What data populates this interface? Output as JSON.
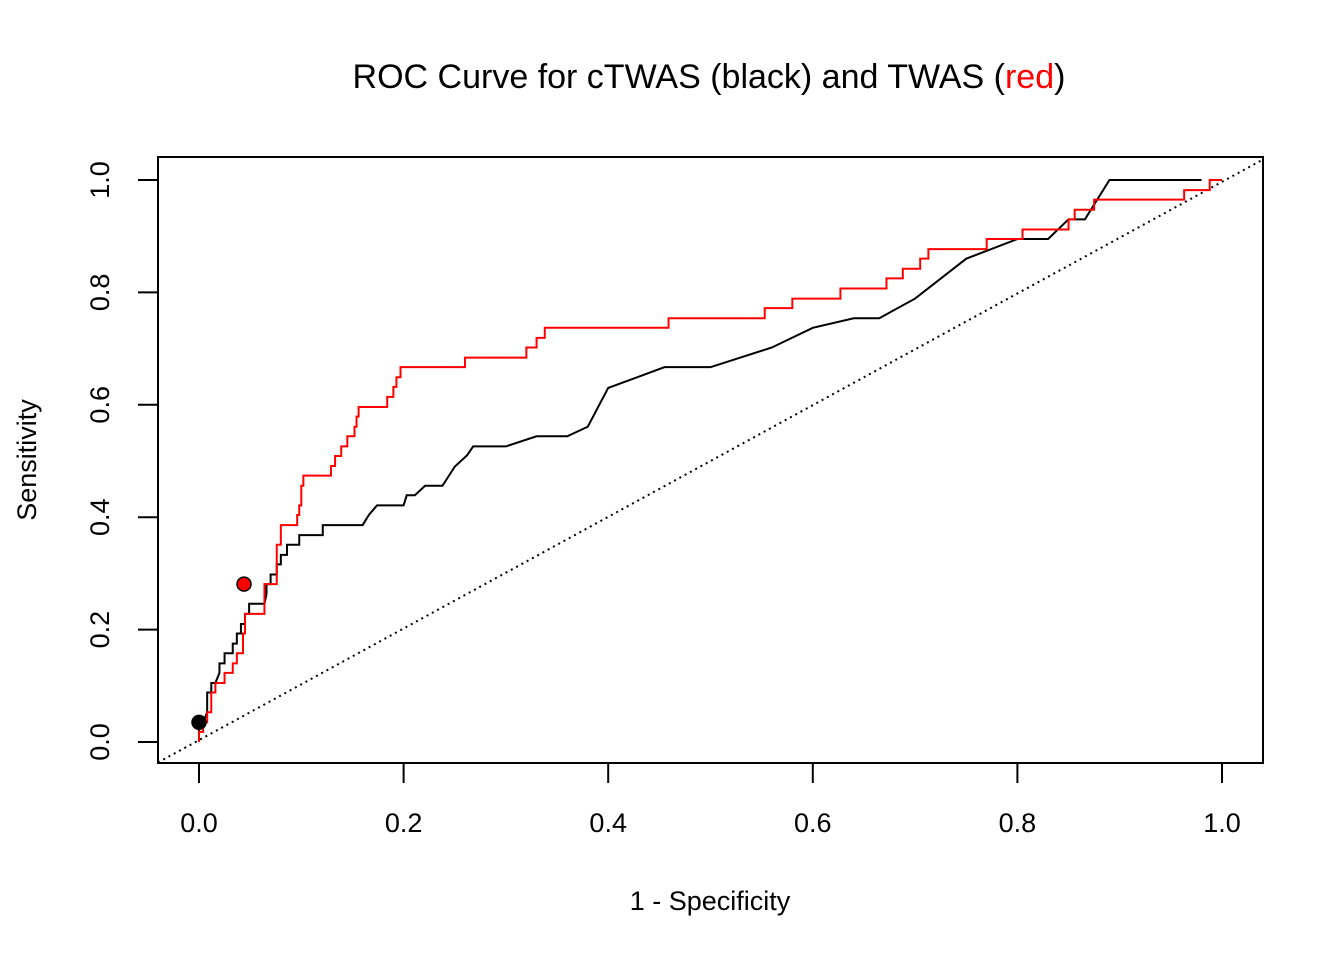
{
  "chart_data": {
    "type": "line",
    "title": {
      "prefix": "ROC Curve for cTWAS (black) and TWAS (",
      "highlight": "red",
      "suffix": ")"
    },
    "xlabel": "1 - Specificity",
    "ylabel": "Sensitivity",
    "xlim": [
      0,
      1
    ],
    "ylim": [
      0,
      1
    ],
    "xticks": [
      "0.0",
      "0.2",
      "0.4",
      "0.6",
      "0.8",
      "1.0"
    ],
    "yticks": [
      "0.0",
      "0.2",
      "0.4",
      "0.6",
      "0.8",
      "1.0"
    ],
    "colors": {
      "ctwas": "#000000",
      "twas": "#ff0000",
      "diagonal": "#000000"
    },
    "series": [
      {
        "key": "ctwas",
        "x": [
          0,
          0,
          0.004,
          0.008,
          0.008,
          0.012,
          0.012,
          0.016,
          0.02,
          0.02,
          0.025,
          0.025,
          0.033,
          0.033,
          0.037,
          0.037,
          0.041,
          0.041,
          0.045,
          0.045,
          0.049,
          0.049,
          0.064,
          0.066,
          0.066,
          0.07,
          0.07,
          0.076,
          0.076,
          0.08,
          0.08,
          0.086,
          0.086,
          0.098,
          0.098,
          0.121,
          0.121,
          0.16,
          0.166,
          0.166,
          0.174,
          0.174,
          0.2,
          0.203,
          0.211,
          0.221,
          0.238,
          0.25,
          0.262,
          0.268,
          0.3,
          0.33,
          0.36,
          0.38,
          0.4,
          0.455,
          0.5,
          0.56,
          0.6,
          0.64,
          0.665,
          0.7,
          0.75,
          0.8,
          0.83,
          0.85,
          0.866,
          0.89,
          0.98
        ],
        "y": [
          0,
          0.035,
          0.035,
          0.053,
          0.088,
          0.088,
          0.105,
          0.105,
          0.123,
          0.14,
          0.14,
          0.158,
          0.158,
          0.175,
          0.175,
          0.193,
          0.193,
          0.21,
          0.21,
          0.228,
          0.228,
          0.246,
          0.246,
          0.263,
          0.281,
          0.281,
          0.298,
          0.298,
          0.316,
          0.316,
          0.333,
          0.333,
          0.351,
          0.351,
          0.368,
          0.368,
          0.386,
          0.386,
          0.404,
          0.404,
          0.421,
          0.421,
          0.421,
          0.439,
          0.439,
          0.456,
          0.456,
          0.49,
          0.51,
          0.526,
          0.526,
          0.544,
          0.544,
          0.561,
          0.63,
          0.667,
          0.667,
          0.702,
          0.737,
          0.754,
          0.754,
          0.789,
          0.86,
          0.895,
          0.895,
          0.93,
          0.93,
          1.0,
          1.0
        ]
      },
      {
        "key": "twas",
        "x": [
          0,
          0,
          0.004,
          0.004,
          0.008,
          0.008,
          0.012,
          0.012,
          0.016,
          0.016,
          0.025,
          0.025,
          0.033,
          0.033,
          0.037,
          0.037,
          0.043,
          0.043,
          0.045,
          0.045,
          0.064,
          0.064,
          0.076,
          0.076,
          0.08,
          0.08,
          0.096,
          0.096,
          0.098,
          0.098,
          0.1,
          0.1,
          0.102,
          0.102,
          0.129,
          0.129,
          0.133,
          0.133,
          0.139,
          0.139,
          0.145,
          0.145,
          0.152,
          0.152,
          0.154,
          0.154,
          0.156,
          0.156,
          0.184,
          0.184,
          0.19,
          0.19,
          0.193,
          0.193,
          0.197,
          0.197,
          0.26,
          0.26,
          0.32,
          0.32,
          0.33,
          0.33,
          0.338,
          0.338,
          0.375,
          0.375,
          0.459,
          0.459,
          0.553,
          0.553,
          0.58,
          0.58,
          0.627,
          0.627,
          0.672,
          0.672,
          0.688,
          0.688,
          0.705,
          0.705,
          0.713,
          0.713,
          0.77,
          0.77,
          0.795,
          0.795,
          0.805,
          0.805,
          0.84,
          0.84,
          0.85,
          0.85,
          0.856,
          0.856,
          0.875,
          0.875,
          0.963,
          0.963,
          0.982,
          0.982,
          0.988,
          0.988,
          1.0
        ],
        "y": [
          0,
          0.018,
          0.018,
          0.035,
          0.035,
          0.053,
          0.053,
          0.088,
          0.088,
          0.105,
          0.105,
          0.123,
          0.123,
          0.14,
          0.14,
          0.158,
          0.158,
          0.193,
          0.193,
          0.228,
          0.228,
          0.281,
          0.281,
          0.351,
          0.351,
          0.386,
          0.386,
          0.404,
          0.404,
          0.421,
          0.421,
          0.456,
          0.456,
          0.474,
          0.474,
          0.491,
          0.491,
          0.509,
          0.509,
          0.526,
          0.526,
          0.544,
          0.544,
          0.561,
          0.561,
          0.579,
          0.579,
          0.596,
          0.596,
          0.614,
          0.614,
          0.632,
          0.632,
          0.649,
          0.649,
          0.667,
          0.667,
          0.684,
          0.684,
          0.702,
          0.702,
          0.719,
          0.719,
          0.737,
          0.737,
          0.737,
          0.737,
          0.754,
          0.754,
          0.772,
          0.772,
          0.789,
          0.789,
          0.807,
          0.807,
          0.825,
          0.825,
          0.842,
          0.842,
          0.86,
          0.86,
          0.877,
          0.877,
          0.895,
          0.895,
          0.895,
          0.895,
          0.912,
          0.912,
          0.912,
          0.912,
          0.93,
          0.93,
          0.947,
          0.947,
          0.965,
          0.965,
          0.982,
          0.982,
          0.982,
          0.982,
          1.0,
          1.0
        ]
      }
    ],
    "points": [
      {
        "key": "ctwas",
        "x": 0.0,
        "y": 0.035,
        "fill": "#000000"
      },
      {
        "key": "twas",
        "x": 0.044,
        "y": 0.281,
        "fill": "#ff0000"
      }
    ],
    "diagonal": {
      "x": [
        0,
        1
      ],
      "y": [
        0,
        1
      ],
      "style": "dotted"
    }
  }
}
